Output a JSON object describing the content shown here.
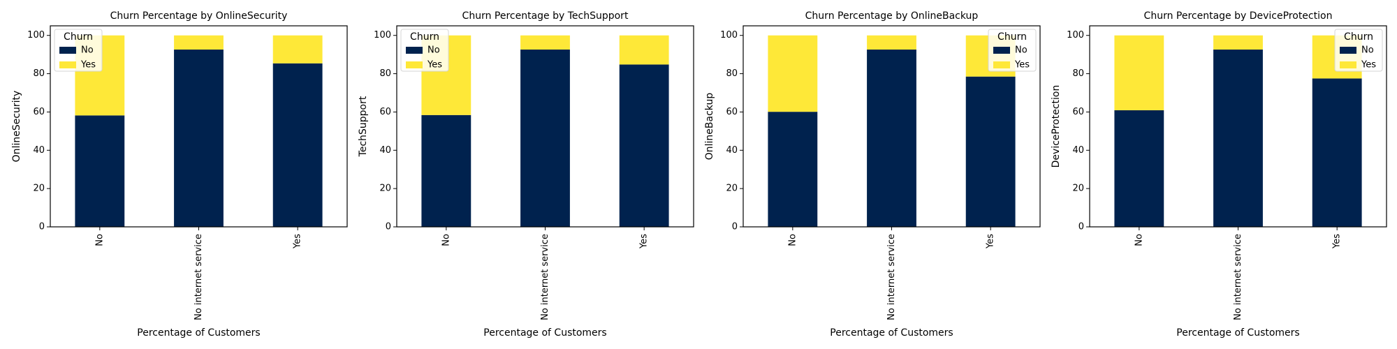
{
  "colors": {
    "no": "#00224e",
    "yes": "#fee838",
    "legend_edge": "#d6d6d6"
  },
  "chart_data": [
    {
      "type": "bar",
      "stacked": true,
      "title": "Churn Percentage by OnlineSecurity",
      "xlabel": "Percentage of Customers",
      "ylabel": "OnlineSecurity",
      "categories": [
        "No",
        "No internet service",
        "Yes"
      ],
      "ylim": [
        0,
        105
      ],
      "yticks": [
        0,
        20,
        40,
        60,
        80,
        100
      ],
      "legend_title": "Churn",
      "legend_position": "upper-left",
      "grid": false,
      "series": [
        {
          "name": "No",
          "values": [
            58.2,
            92.6,
            85.4
          ]
        },
        {
          "name": "Yes",
          "values": [
            41.8,
            7.4,
            14.6
          ]
        }
      ]
    },
    {
      "type": "bar",
      "stacked": true,
      "title": "Churn Percentage by TechSupport",
      "xlabel": "Percentage of Customers",
      "ylabel": "TechSupport",
      "categories": [
        "No",
        "No internet service",
        "Yes"
      ],
      "ylim": [
        0,
        105
      ],
      "yticks": [
        0,
        20,
        40,
        60,
        80,
        100
      ],
      "legend_title": "Churn",
      "legend_position": "upper-left",
      "grid": false,
      "series": [
        {
          "name": "No",
          "values": [
            58.4,
            92.6,
            84.8
          ]
        },
        {
          "name": "Yes",
          "values": [
            41.6,
            7.4,
            15.2
          ]
        }
      ]
    },
    {
      "type": "bar",
      "stacked": true,
      "title": "Churn Percentage by OnlineBackup",
      "xlabel": "Percentage of Customers",
      "ylabel": "OnlineBackup",
      "categories": [
        "No",
        "No internet service",
        "Yes"
      ],
      "ylim": [
        0,
        105
      ],
      "yticks": [
        0,
        20,
        40,
        60,
        80,
        100
      ],
      "legend_title": "Churn",
      "legend_position": "upper-right",
      "grid": false,
      "series": [
        {
          "name": "No",
          "values": [
            60.1,
            92.6,
            78.5
          ]
        },
        {
          "name": "Yes",
          "values": [
            39.9,
            7.4,
            21.5
          ]
        }
      ]
    },
    {
      "type": "bar",
      "stacked": true,
      "title": "Churn Percentage by DeviceProtection",
      "xlabel": "Percentage of Customers",
      "ylabel": "DeviceProtection",
      "categories": [
        "No",
        "No internet service",
        "Yes"
      ],
      "ylim": [
        0,
        105
      ],
      "yticks": [
        0,
        20,
        40,
        60,
        80,
        100
      ],
      "legend_title": "Churn",
      "legend_position": "upper-right",
      "grid": false,
      "series": [
        {
          "name": "No",
          "values": [
            60.9,
            92.6,
            77.5
          ]
        },
        {
          "name": "Yes",
          "values": [
            39.1,
            7.4,
            22.5
          ]
        }
      ]
    }
  ]
}
